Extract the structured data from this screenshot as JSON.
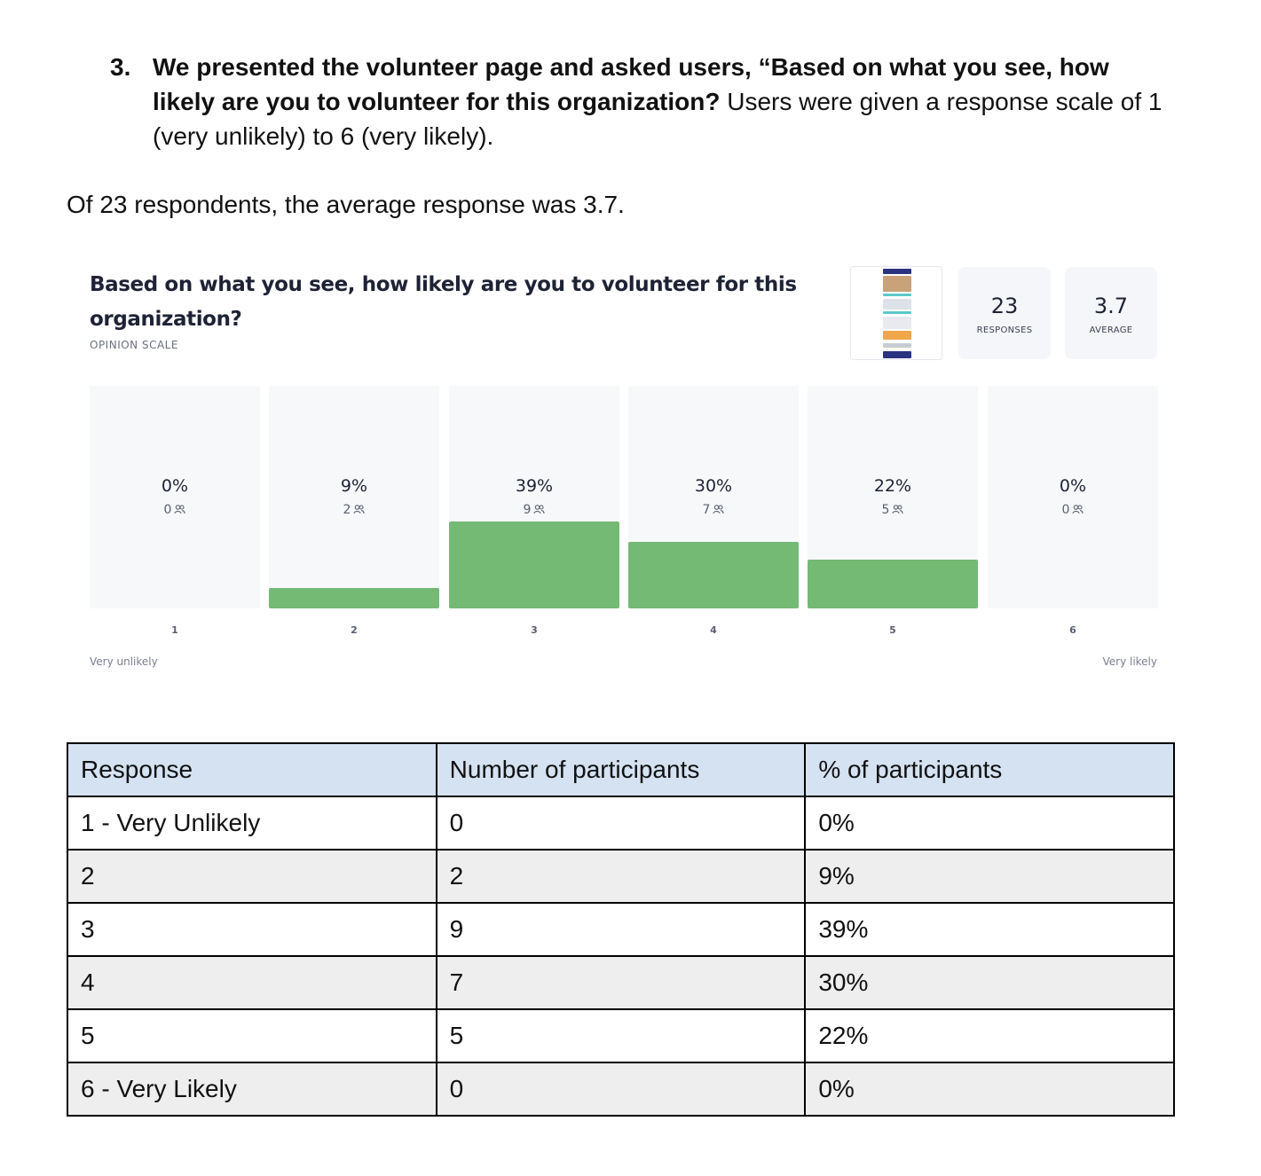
{
  "question": {
    "number": "3.",
    "bold_text": "We presented the volunteer page and asked users, “Based on what you see, how likely are you to volunteer for this organization?",
    "rest_text": " Users were given a response scale of 1 (very unlikely) to 6 (very likely)."
  },
  "summary": "Of 23 respondents, the average response was 3.7.",
  "card": {
    "title": "Based on what you see, how likely are you to volunteer for this organization?",
    "type_label": "OPINION SCALE",
    "responses_value": "23",
    "responses_label": "RESPONSES",
    "average_value": "3.7",
    "average_label": "AVERAGE",
    "anchor_low": "Very unlikely",
    "anchor_high": "Very likely",
    "icon": "people-icon"
  },
  "chart_data": {
    "type": "bar",
    "categories": [
      "1",
      "2",
      "3",
      "4",
      "5",
      "6"
    ],
    "values": [
      0,
      9,
      39,
      30,
      22,
      0
    ],
    "percent_labels": [
      "0%",
      "9%",
      "39%",
      "30%",
      "22%",
      "0%"
    ],
    "counts": [
      "0",
      "2",
      "9",
      "7",
      "5",
      "0"
    ],
    "bar_color": "#74b974",
    "grid": false
  },
  "table": {
    "headers": [
      "Response",
      "Number of participants",
      "% of participants"
    ],
    "rows": [
      [
        "1 - Very Unlikely",
        "0",
        "0%"
      ],
      [
        "2",
        "2",
        "9%"
      ],
      [
        "3",
        "9",
        "39%"
      ],
      [
        "4",
        "7",
        "30%"
      ],
      [
        "5",
        "5",
        "22%"
      ],
      [
        "6 - Very Likely",
        "0",
        "0%"
      ]
    ]
  }
}
